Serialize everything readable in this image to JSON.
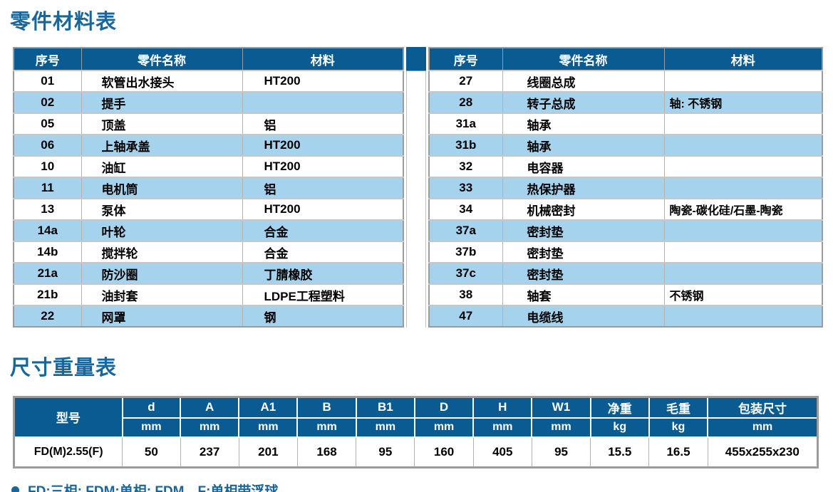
{
  "parts_table": {
    "title": "零件材料表",
    "headers": [
      "序号",
      "零件名称",
      "材料"
    ],
    "left_rows": [
      {
        "no": "01",
        "name": "软管出水接头",
        "material": "HT200"
      },
      {
        "no": "02",
        "name": "提手",
        "material": ""
      },
      {
        "no": "05",
        "name": "顶盖",
        "material": "铝"
      },
      {
        "no": "06",
        "name": "上轴承盖",
        "material": "HT200"
      },
      {
        "no": "10",
        "name": "油缸",
        "material": "HT200"
      },
      {
        "no": "11",
        "name": "电机筒",
        "material": "铝"
      },
      {
        "no": "13",
        "name": "泵体",
        "material": "HT200"
      },
      {
        "no": "14a",
        "name": "叶轮",
        "material": "合金"
      },
      {
        "no": "14b",
        "name": "搅拌轮",
        "material": "合金"
      },
      {
        "no": "21a",
        "name": "防沙圈",
        "material": "丁腈橡胶"
      },
      {
        "no": "21b",
        "name": "油封套",
        "material": "LDPE工程塑料"
      },
      {
        "no": "22",
        "name": "网罩",
        "material": "钢"
      }
    ],
    "right_rows": [
      {
        "no": "27",
        "name": "线圈总成",
        "material": ""
      },
      {
        "no": "28",
        "name": "转子总成",
        "material": "轴: 不锈钢"
      },
      {
        "no": "31a",
        "name": "轴承",
        "material": ""
      },
      {
        "no": "31b",
        "name": "轴承",
        "material": ""
      },
      {
        "no": "32",
        "name": "电容器",
        "material": ""
      },
      {
        "no": "33",
        "name": "热保护器",
        "material": ""
      },
      {
        "no": "34",
        "name": "机械密封",
        "material": "陶瓷-碳化硅/石墨-陶瓷"
      },
      {
        "no": "37a",
        "name": "密封垫",
        "material": ""
      },
      {
        "no": "37b",
        "name": "密封垫",
        "material": ""
      },
      {
        "no": "37c",
        "name": "密封垫",
        "material": ""
      },
      {
        "no": "38",
        "name": "轴套",
        "material": "不锈钢"
      },
      {
        "no": "47",
        "name": "电缆线",
        "material": ""
      }
    ]
  },
  "dims_table": {
    "title": "尺寸重量表",
    "model_header": "型号",
    "columns": [
      {
        "label": "d",
        "unit": "mm"
      },
      {
        "label": "A",
        "unit": "mm"
      },
      {
        "label": "A1",
        "unit": "mm"
      },
      {
        "label": "B",
        "unit": "mm"
      },
      {
        "label": "B1",
        "unit": "mm"
      },
      {
        "label": "D",
        "unit": "mm"
      },
      {
        "label": "H",
        "unit": "mm"
      },
      {
        "label": "W1",
        "unit": "mm"
      },
      {
        "label": "净重",
        "unit": "kg"
      },
      {
        "label": "毛重",
        "unit": "kg"
      },
      {
        "label": "包装尺寸",
        "unit": "mm"
      }
    ],
    "rows": [
      {
        "model": "FD(M)2.55(F)",
        "values": [
          "50",
          "237",
          "201",
          "168",
          "95",
          "160",
          "405",
          "95",
          "15.5",
          "16.5",
          "455x255x230"
        ]
      }
    ]
  },
  "footnote": "FD:三相; FDM:单相; FDM…F:单相带浮球",
  "colors": {
    "header_blue": "#0b5b93",
    "stripe_blue": "#a5d3ee",
    "title_blue": "#17669c",
    "grid_gray": "#b4b4b4"
  }
}
